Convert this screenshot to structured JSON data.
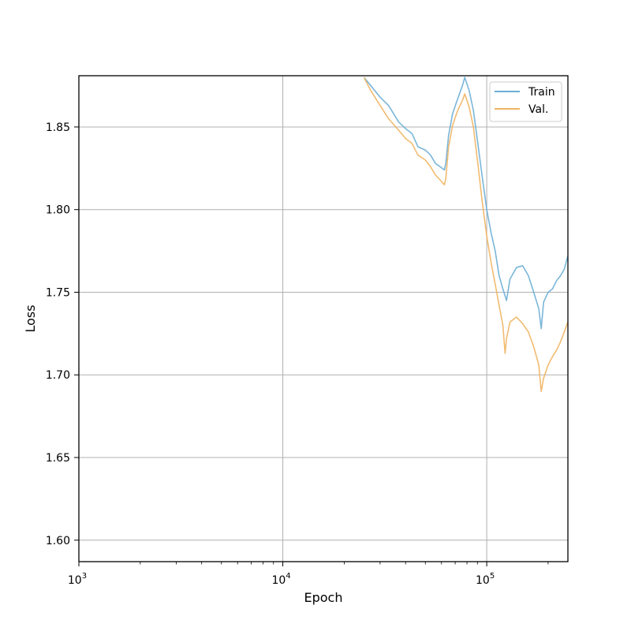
{
  "chart_data": {
    "type": "line",
    "xlabel": "Epoch",
    "ylabel": "Loss",
    "xscale": "log",
    "xlim": [
      1000,
      250000
    ],
    "ylim": [
      1.587,
      1.881
    ],
    "xticks": [
      {
        "value": 1000,
        "base": "10",
        "exp": "3"
      },
      {
        "value": 10000,
        "base": "10",
        "exp": "4"
      },
      {
        "value": 100000,
        "base": "10",
        "exp": "5"
      }
    ],
    "yticks": [
      {
        "value": 1.6,
        "label": "1.60"
      },
      {
        "value": 1.65,
        "label": "1.65"
      },
      {
        "value": 1.7,
        "label": "1.70"
      },
      {
        "value": 1.75,
        "label": "1.75"
      },
      {
        "value": 1.8,
        "label": "1.80"
      },
      {
        "value": 1.85,
        "label": "1.85"
      }
    ],
    "grid": true,
    "legend": {
      "position": "top-right"
    },
    "series": [
      {
        "name": "Train",
        "color": "#6baed6",
        "x": [
          25000,
          27000,
          30000,
          33000,
          37000,
          40000,
          43000,
          46000,
          50000,
          53000,
          56000,
          59000,
          62000,
          63000,
          65000,
          68000,
          72000,
          76000,
          78000,
          82000,
          86000,
          90000,
          95000,
          100000,
          105000,
          110000,
          115000,
          120000,
          125000,
          130000,
          140000,
          150000,
          160000,
          170000,
          180000,
          185000,
          190000,
          200000,
          210000,
          220000,
          230000,
          240000,
          250000
        ],
        "y": [
          1.88,
          1.875,
          1.868,
          1.863,
          1.853,
          1.849,
          1.846,
          1.838,
          1.836,
          1.833,
          1.828,
          1.826,
          1.824,
          1.828,
          1.845,
          1.858,
          1.867,
          1.875,
          1.88,
          1.872,
          1.86,
          1.842,
          1.82,
          1.8,
          1.786,
          1.775,
          1.76,
          1.752,
          1.745,
          1.758,
          1.765,
          1.766,
          1.76,
          1.75,
          1.74,
          1.728,
          1.744,
          1.75,
          1.752,
          1.757,
          1.76,
          1.764,
          1.772
        ]
      },
      {
        "name": "Val.",
        "color": "#f0b462",
        "x": [
          25000,
          27000,
          30000,
          33000,
          37000,
          40000,
          43000,
          46000,
          50000,
          53000,
          56000,
          59000,
          62000,
          63000,
          65000,
          68000,
          72000,
          76000,
          78000,
          82000,
          86000,
          90000,
          95000,
          100000,
          105000,
          110000,
          115000,
          120000,
          123000,
          125000,
          130000,
          140000,
          150000,
          160000,
          170000,
          180000,
          185000,
          190000,
          200000,
          210000,
          220000,
          230000,
          240000,
          250000
        ],
        "y": [
          1.88,
          1.872,
          1.863,
          1.855,
          1.848,
          1.843,
          1.84,
          1.833,
          1.83,
          1.826,
          1.821,
          1.818,
          1.815,
          1.819,
          1.838,
          1.851,
          1.86,
          1.866,
          1.87,
          1.862,
          1.85,
          1.83,
          1.805,
          1.784,
          1.768,
          1.755,
          1.742,
          1.73,
          1.713,
          1.722,
          1.732,
          1.735,
          1.731,
          1.726,
          1.717,
          1.706,
          1.69,
          1.698,
          1.706,
          1.711,
          1.715,
          1.72,
          1.726,
          1.732
        ]
      }
    ]
  }
}
